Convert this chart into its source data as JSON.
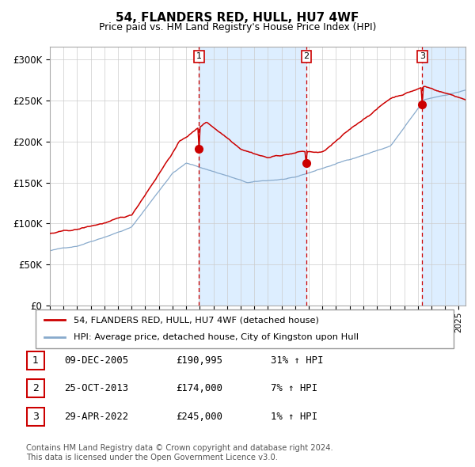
{
  "title": "54, FLANDERS RED, HULL, HU7 4WF",
  "subtitle": "Price paid vs. HM Land Registry's House Price Index (HPI)",
  "ylabel_ticks": [
    "£0",
    "£50K",
    "£100K",
    "£150K",
    "£200K",
    "£250K",
    "£300K"
  ],
  "ytick_values": [
    0,
    50000,
    100000,
    150000,
    200000,
    250000,
    300000
  ],
  "ylim": [
    0,
    315000
  ],
  "xlim_start": 1995.0,
  "xlim_end": 2025.5,
  "red_color": "#cc0000",
  "blue_color": "#88aacc",
  "bg_shade_color": "#ddeeff",
  "grid_color": "#cccccc",
  "purchase_dates": [
    2005.94,
    2013.82,
    2022.33
  ],
  "purchase_prices": [
    190995,
    174000,
    245000
  ],
  "legend_red_label": "54, FLANDERS RED, HULL, HU7 4WF (detached house)",
  "legend_blue_label": "HPI: Average price, detached house, City of Kingston upon Hull",
  "table_data": [
    {
      "num": "1",
      "date": "09-DEC-2005",
      "price": "£190,995",
      "hpi": "31% ↑ HPI"
    },
    {
      "num": "2",
      "date": "25-OCT-2013",
      "price": "£174,000",
      "hpi": "7% ↑ HPI"
    },
    {
      "num": "3",
      "date": "29-APR-2022",
      "price": "£245,000",
      "hpi": "1% ↑ HPI"
    }
  ],
  "footnote": "Contains HM Land Registry data © Crown copyright and database right 2024.\nThis data is licensed under the Open Government Licence v3.0."
}
